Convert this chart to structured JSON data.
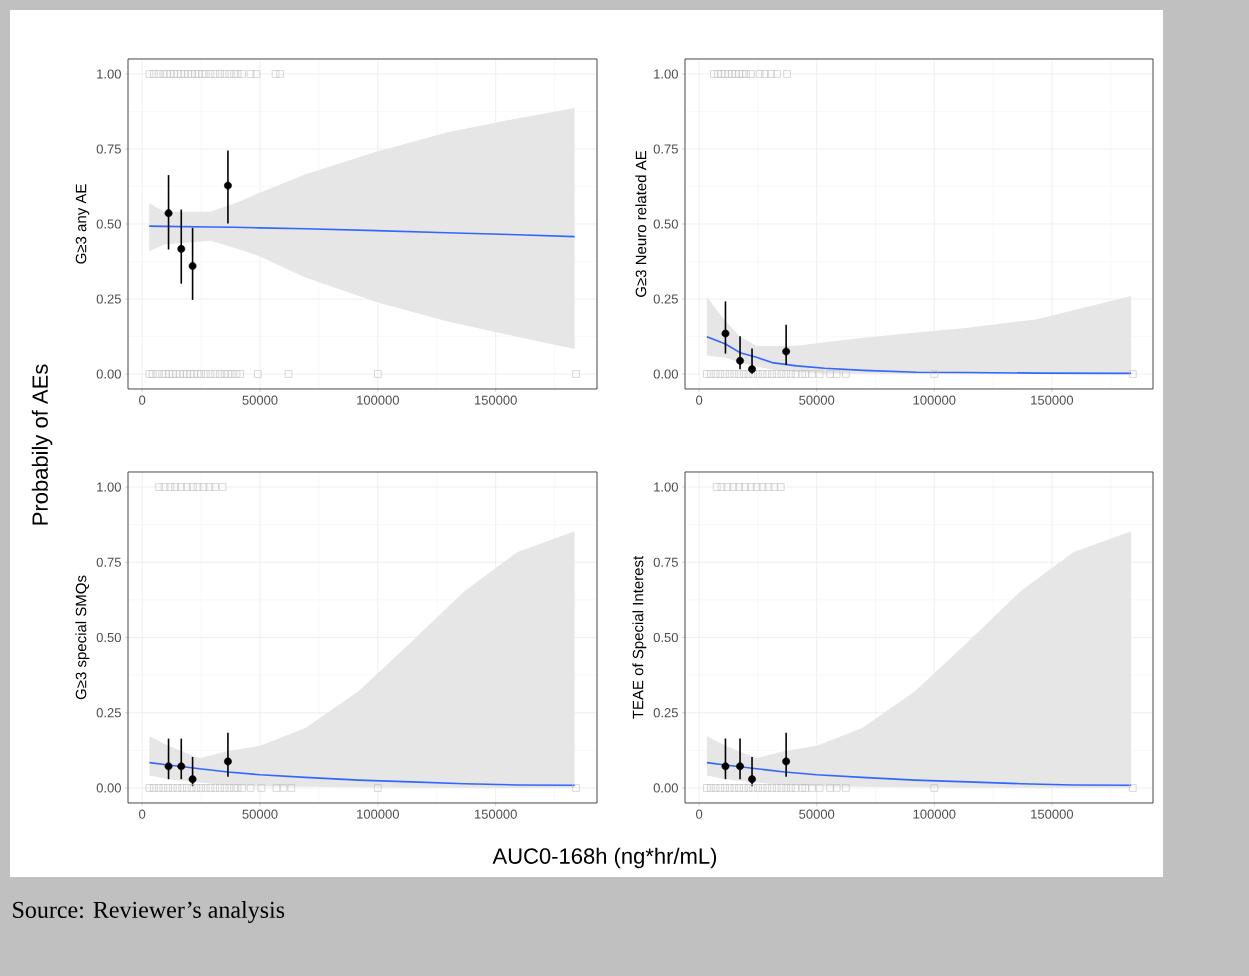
{
  "chart_data": [
    {
      "type": "line",
      "ylabel": "G≥3 any AE",
      "xlim": [
        -6000,
        193000
      ],
      "ylim": [
        -0.05,
        1.05
      ],
      "xticks": [
        0,
        50000,
        100000,
        150000
      ],
      "yticks": [
        {
          "value": 0,
          "label": "0.00"
        },
        {
          "value": 0.25,
          "label": "0.25"
        },
        {
          "value": 0.5,
          "label": "0.50"
        },
        {
          "value": 0.75,
          "label": "0.75"
        },
        {
          "value": 1,
          "label": "1.00"
        }
      ],
      "grid": true,
      "series": [
        {
          "type": "line",
          "color": "#3366ff",
          "x": [
            3000,
            9400,
            28900,
            39400,
            50000,
            69300,
            99300,
            129200,
            159100,
            183500
          ],
          "values": [
            0.493,
            0.492,
            0.49,
            0.489,
            0.487,
            0.484,
            0.478,
            0.471,
            0.464,
            0.458
          ],
          "lower": [
            0.409,
            0.432,
            0.444,
            0.42,
            0.392,
            0.322,
            0.24,
            0.176,
            0.124,
            0.083
          ],
          "upper": [
            0.569,
            0.541,
            0.541,
            0.569,
            0.604,
            0.666,
            0.741,
            0.805,
            0.852,
            0.887
          ]
        },
        {
          "type": "scatter",
          "marker": "square",
          "color": "#bebebe",
          "x": [
            3100,
            5000,
            7000,
            9000,
            10500,
            12000,
            13500,
            15000,
            16500,
            18000,
            19500,
            21000,
            22500,
            24000,
            25500,
            27000,
            29000,
            31000,
            33000,
            35000,
            37000,
            39000,
            40500,
            42400,
            46000,
            48500,
            56600,
            58500,
            3100,
            4500,
            6500,
            8500,
            10000,
            11500,
            13000,
            14500,
            16000,
            17500,
            19000,
            20500,
            22000,
            23500,
            25000,
            27000,
            29000,
            31000,
            33000,
            35000,
            36500,
            38000,
            40000,
            41600,
            49100,
            62100,
            100000,
            184100
          ],
          "values": [
            1,
            1,
            1,
            1,
            1,
            1,
            1,
            1,
            1,
            1,
            1,
            1,
            1,
            1,
            1,
            1,
            1,
            1,
            1,
            1,
            1,
            1,
            1,
            1,
            1,
            1,
            1,
            1,
            0,
            0,
            0,
            0,
            0,
            0,
            0,
            0,
            0,
            0,
            0,
            0,
            0,
            0,
            0,
            0,
            0,
            0,
            0,
            0,
            0,
            0,
            0,
            0,
            0,
            0,
            0,
            0
          ]
        },
        {
          "type": "scatter",
          "marker": "circle",
          "color": "#000000",
          "x": [
            11200,
            16600,
            21400,
            36400
          ],
          "values": [
            0.536,
            0.417,
            0.36,
            0.628
          ],
          "errors": [
            [
              0.415,
              0.663
            ],
            [
              0.301,
              0.548
            ],
            [
              0.247,
              0.487
            ],
            [
              0.502,
              0.745
            ]
          ]
        }
      ]
    },
    {
      "type": "line",
      "ylabel": "G≥3 Neuro related AE",
      "xlim": [
        -6000,
        193000
      ],
      "ylim": [
        -0.05,
        1.05
      ],
      "xticks": [
        0,
        50000,
        100000,
        150000
      ],
      "yticks": [
        {
          "value": 0,
          "label": "0.00"
        },
        {
          "value": 0.25,
          "label": "0.25"
        },
        {
          "value": 0.5,
          "label": "0.50"
        },
        {
          "value": 0.75,
          "label": "0.75"
        },
        {
          "value": 1,
          "label": "1.00"
        }
      ],
      "grid": true,
      "series": [
        {
          "type": "line",
          "color": "#3366ff",
          "x": [
            3300,
            11200,
            17400,
            24400,
            31000,
            41500,
            53400,
            69900,
            92400,
            113300,
            143300,
            183700
          ],
          "values": [
            0.124,
            0.1,
            0.071,
            0.056,
            0.038,
            0.027,
            0.019,
            0.012,
            0.006,
            0.005,
            0.003,
            0.002
          ],
          "lower": [
            0.062,
            0.054,
            0.038,
            0.024,
            0.015,
            0.007,
            0.002,
            0.001,
            0.0,
            0.0,
            0.0,
            0.0
          ],
          "upper": [
            0.256,
            0.176,
            0.124,
            0.094,
            0.093,
            0.094,
            0.106,
            0.121,
            0.138,
            0.153,
            0.182,
            0.26
          ]
        },
        {
          "type": "scatter",
          "marker": "square",
          "color": "#bebebe",
          "x": [
            6300,
            8000,
            9500,
            11000,
            12500,
            14000,
            15500,
            17000,
            18500,
            20000,
            22000,
            25700,
            28000,
            30500,
            33200,
            37400,
            3300,
            5000,
            7000,
            9000,
            11000,
            13000,
            15000,
            17000,
            19000,
            21000,
            23000,
            25000,
            27000,
            29000,
            31000,
            33000,
            35000,
            37000,
            39000,
            41000,
            43800,
            45200,
            48000,
            51200,
            55700,
            58500,
            62400,
            100000,
            184400
          ],
          "values": [
            1,
            1,
            1,
            1,
            1,
            1,
            1,
            1,
            1,
            1,
            1,
            1,
            1,
            1,
            1,
            1,
            0,
            0,
            0,
            0,
            0,
            0,
            0,
            0,
            0,
            0,
            0,
            0,
            0,
            0,
            0,
            0,
            0,
            0,
            0,
            0,
            0,
            0,
            0,
            0,
            0,
            0,
            0,
            0,
            0
          ]
        },
        {
          "type": "scatter",
          "marker": "circle",
          "color": "#000000",
          "x": [
            11200,
            17400,
            22500,
            37000
          ],
          "values": [
            0.135,
            0.044,
            0.016,
            0.075
          ],
          "errors": [
            [
              0.068,
              0.242
            ],
            [
              0.016,
              0.126
            ],
            [
              0.0,
              0.085
            ],
            [
              0.03,
              0.164
            ]
          ]
        }
      ]
    },
    {
      "type": "line",
      "ylabel": "G≥3 special SMQs",
      "xlim": [
        -6000,
        193000
      ],
      "ylim": [
        -0.05,
        1.05
      ],
      "xticks": [
        0,
        50000,
        100000,
        150000
      ],
      "yticks": [
        {
          "value": 0,
          "label": "0.00"
        },
        {
          "value": 0.25,
          "label": "0.25"
        },
        {
          "value": 0.5,
          "label": "0.50"
        },
        {
          "value": 0.75,
          "label": "0.75"
        },
        {
          "value": 1,
          "label": "1.00"
        }
      ],
      "grid": true,
      "series": [
        {
          "type": "line",
          "color": "#3366ff",
          "x": [
            3100,
            11200,
            24400,
            36400,
            50000,
            69300,
            91800,
            114200,
            136700,
            159100,
            183500
          ],
          "values": [
            0.084,
            0.076,
            0.064,
            0.053,
            0.044,
            0.035,
            0.026,
            0.02,
            0.014,
            0.01,
            0.009
          ],
          "lower": [
            0.041,
            0.029,
            0.018,
            0.009,
            0.006,
            0.004,
            0.002,
            0.001,
            0.001,
            0.0,
            0.0
          ],
          "upper": [
            0.172,
            0.14,
            0.099,
            0.123,
            0.14,
            0.199,
            0.321,
            0.485,
            0.654,
            0.783,
            0.853
          ]
        },
        {
          "type": "scatter",
          "marker": "square",
          "color": "#bebebe",
          "x": [
            7200,
            9500,
            12000,
            14000,
            16500,
            19000,
            21500,
            23500,
            26000,
            28500,
            31000,
            34100,
            3100,
            5000,
            7000,
            9000,
            11000,
            13000,
            15000,
            17000,
            19000,
            21000,
            23000,
            25000,
            27000,
            29000,
            31000,
            33000,
            35000,
            37000,
            39000,
            40500,
            42400,
            46000,
            50600,
            57000,
            60000,
            63300,
            100000,
            184100
          ],
          "values": [
            1,
            1,
            1,
            1,
            1,
            1,
            1,
            1,
            1,
            1,
            1,
            1,
            0,
            0,
            0,
            0,
            0,
            0,
            0,
            0,
            0,
            0,
            0,
            0,
            0,
            0,
            0,
            0,
            0,
            0,
            0,
            0,
            0,
            0,
            0,
            0,
            0,
            0,
            0,
            0
          ]
        },
        {
          "type": "scatter",
          "marker": "circle",
          "color": "#000000",
          "x": [
            11200,
            16600,
            21400,
            36400
          ],
          "values": [
            0.072,
            0.072,
            0.029,
            0.088
          ],
          "errors": [
            [
              0.029,
              0.164
            ],
            [
              0.029,
              0.164
            ],
            [
              0.006,
              0.103
            ],
            [
              0.037,
              0.183
            ]
          ]
        }
      ]
    },
    {
      "type": "line",
      "ylabel": "TEAE of Special Interest",
      "xlim": [
        -6000,
        193000
      ],
      "ylim": [
        -0.05,
        1.05
      ],
      "xticks": [
        0,
        50000,
        100000,
        150000
      ],
      "yticks": [
        {
          "value": 0,
          "label": "0.00"
        },
        {
          "value": 0.25,
          "label": "0.25"
        },
        {
          "value": 0.5,
          "label": "0.50"
        },
        {
          "value": 0.75,
          "label": "0.75"
        },
        {
          "value": 1,
          "label": "1.00"
        }
      ],
      "grid": true,
      "series": [
        {
          "type": "line",
          "color": "#3366ff",
          "x": [
            3300,
            11200,
            24400,
            36400,
            50000,
            69300,
            91800,
            114200,
            136700,
            159100,
            183700
          ],
          "values": [
            0.084,
            0.076,
            0.064,
            0.053,
            0.044,
            0.035,
            0.026,
            0.02,
            0.014,
            0.01,
            0.009
          ],
          "lower": [
            0.041,
            0.029,
            0.018,
            0.009,
            0.006,
            0.004,
            0.002,
            0.001,
            0.001,
            0.0,
            0.0
          ],
          "upper": [
            0.172,
            0.14,
            0.099,
            0.123,
            0.14,
            0.199,
            0.321,
            0.485,
            0.654,
            0.783,
            0.853
          ]
        },
        {
          "type": "scatter",
          "marker": "square",
          "color": "#bebebe",
          "x": [
            7500,
            9500,
            12000,
            14500,
            17000,
            19500,
            22000,
            24500,
            27000,
            29500,
            32000,
            34700,
            3300,
            5000,
            7000,
            9000,
            11000,
            13000,
            15000,
            17000,
            19000,
            21000,
            23000,
            25000,
            27000,
            29000,
            31000,
            33000,
            35000,
            37000,
            39000,
            41000,
            43800,
            45200,
            48000,
            51200,
            55700,
            58500,
            62400,
            100000,
            184400
          ],
          "values": [
            1,
            1,
            1,
            1,
            1,
            1,
            1,
            1,
            1,
            1,
            1,
            1,
            0,
            0,
            0,
            0,
            0,
            0,
            0,
            0,
            0,
            0,
            0,
            0,
            0,
            0,
            0,
            0,
            0,
            0,
            0,
            0,
            0,
            0,
            0,
            0,
            0,
            0,
            0,
            0,
            0
          ]
        },
        {
          "type": "scatter",
          "marker": "circle",
          "color": "#000000",
          "x": [
            11200,
            17400,
            22500,
            37000
          ],
          "values": [
            0.072,
            0.072,
            0.029,
            0.088
          ],
          "errors": [
            [
              0.029,
              0.164
            ],
            [
              0.029,
              0.164
            ],
            [
              0.006,
              0.103
            ],
            [
              0.037,
              0.183
            ]
          ]
        }
      ]
    },
    {
      "type": "other",
      "ylabel": "Probabily of AEs",
      "xlabel": "AUC0-168h (ng*hr/mL)",
      "annotations": [
        "Source: Reviewer’s analysis"
      ]
    }
  ]
}
